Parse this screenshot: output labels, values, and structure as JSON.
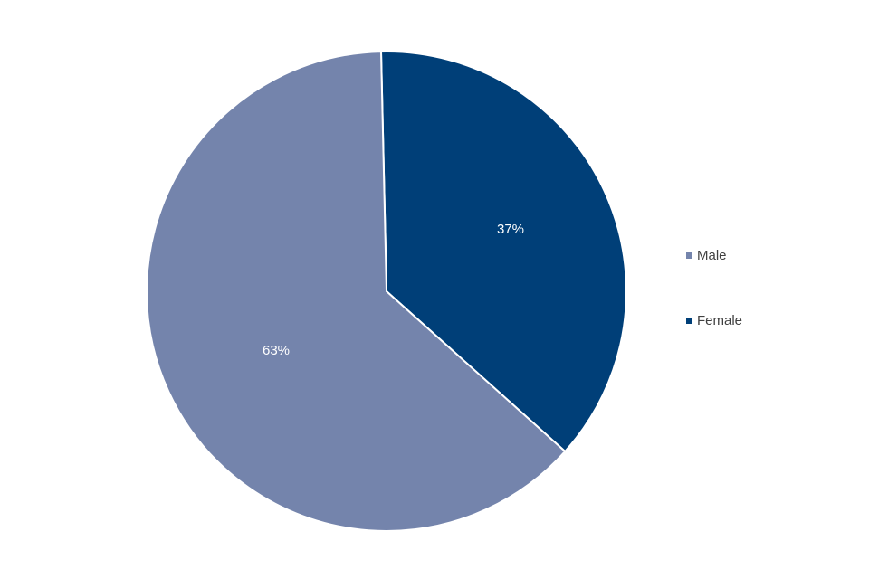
{
  "chart_data": {
    "type": "pie",
    "categories": [
      "Male",
      "Female"
    ],
    "values": [
      63,
      37
    ],
    "data_labels": [
      "63%",
      "37%"
    ],
    "colors": [
      "#7484ac",
      "#003f78"
    ],
    "legend_position": "right",
    "start_slice": "Female"
  }
}
